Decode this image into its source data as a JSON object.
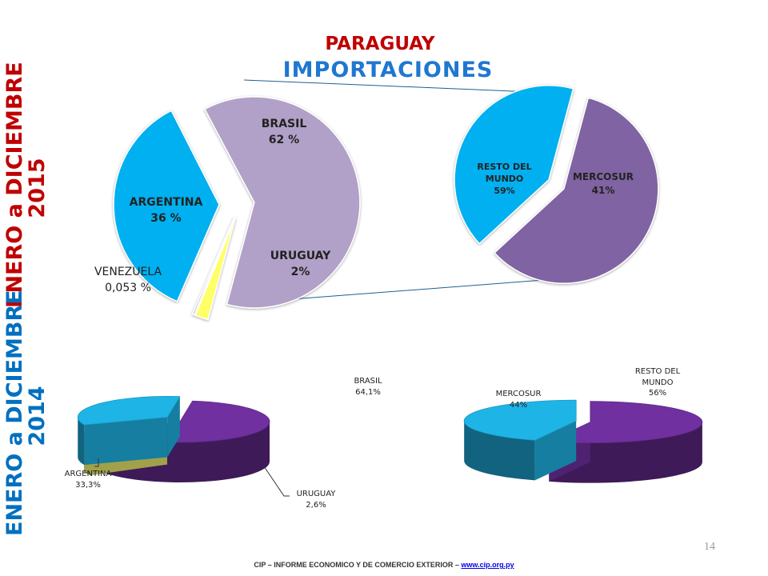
{
  "titles": {
    "country": "PARAGUAY",
    "main": "IMPORTACIONES",
    "side_2015_line1": "ENERO a DICIEMBRE",
    "side_2015_line2": "2015",
    "side_2014_line1": "ENERO a DICIEMBRE",
    "side_2014_line2": "2014"
  },
  "footer": {
    "text": "CIP – INFORME ECONOMICO Y DE COMERCIO EXTERIOR – ",
    "link": "www.cip.org.py"
  },
  "page_number": "14",
  "labels": {
    "brasil_2015": {
      "name": "BRASIL",
      "value": "62 %"
    },
    "argentina_2015": {
      "name": "ARGENTINA",
      "value": "36 %"
    },
    "venezuela_2015": {
      "name": "VENEZUELA",
      "value": "0,053 %"
    },
    "uruguay_2015": {
      "name": "URUGUAY",
      "value": "2%"
    },
    "resto_2015": {
      "name1": "RESTO DEL",
      "name2": "MUNDO",
      "value": "59%"
    },
    "mercosur_2015": {
      "name": "MERCOSUR",
      "value": "41%"
    },
    "brasil_2014": {
      "name": "BRASIL",
      "value": "64,1%"
    },
    "argentina_2014": {
      "name": "ARGENTINA",
      "value": "33,3%"
    },
    "uruguay_2014": {
      "name": "URUGUAY",
      "value": "2,6%"
    },
    "mercosur_2014": {
      "name": "MERCOSUR",
      "value": "44%"
    },
    "resto_2014": {
      "name1": "RESTO DEL",
      "name2": "MUNDO",
      "value": "56%"
    }
  },
  "chart_data": [
    {
      "type": "pie",
      "period": "ENERO a DICIEMBRE 2015",
      "categories": [
        "BRASIL",
        "URUGUAY",
        "VENEZUELA",
        "ARGENTINA"
      ],
      "values": [
        62,
        2,
        0.053,
        36
      ],
      "colors": [
        "#b1a0c7",
        "#ffff66",
        "#cccccc",
        "#00b0f0"
      ]
    },
    {
      "type": "pie",
      "period": "ENERO a DICIEMBRE 2015",
      "categories": [
        "RESTO DEL MUNDO",
        "MERCOSUR"
      ],
      "values": [
        59,
        41
      ],
      "colors": [
        "#8064a2",
        "#00b0f0"
      ]
    },
    {
      "type": "pie",
      "period": "ENERO a DICIEMBRE 2014",
      "categories": [
        "BRASIL",
        "URUGUAY",
        "ARGENTINA"
      ],
      "values": [
        64.1,
        2.6,
        33.3
      ],
      "colors": [
        "#7030a0",
        "#e6e66a",
        "#1fb4e6"
      ]
    },
    {
      "type": "pie",
      "period": "ENERO a DICIEMBRE 2014",
      "categories": [
        "RESTO DEL MUNDO",
        "MERCOSUR"
      ],
      "values": [
        56,
        44
      ],
      "colors": [
        "#7030a0",
        "#1fb4e6"
      ]
    }
  ]
}
